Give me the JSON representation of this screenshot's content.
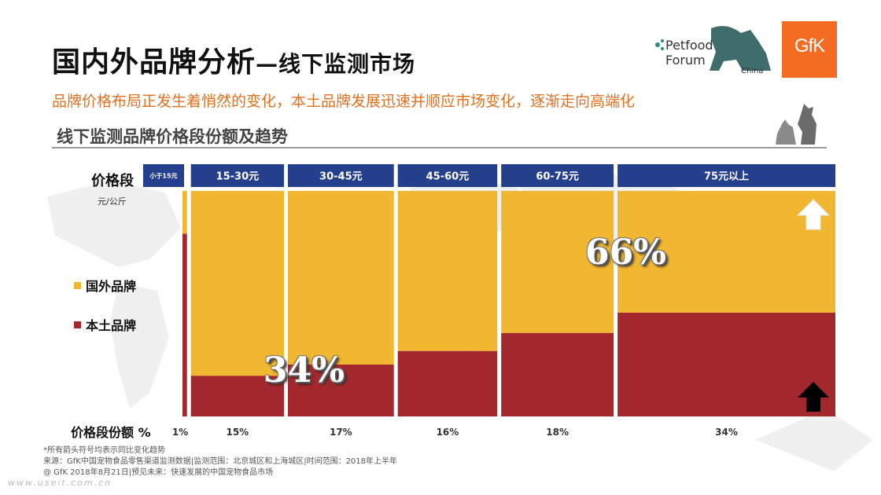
{
  "header": {
    "title": "国内外品牌分析",
    "title_suffix": "—线下监测市场",
    "subtitle": "品牌价格布局正发生着悄然的变化，本土品牌发展迅速并顺应市场变化，逐渐走向高端化",
    "section_title": "线下监测品牌价格段份额及趋势"
  },
  "logos": {
    "petfood_line1": "Petfood",
    "petfood_line2": "Forum",
    "petfood_line3": "China",
    "gfk": "GfK"
  },
  "colors": {
    "foreign": "#f2b731",
    "domestic": "#a3282d",
    "header_bar": "#243f8c",
    "title_accent": "#e0701f"
  },
  "axis": {
    "price_label": "价格段",
    "unit_label": "元/公斤",
    "share_label": "价格段份额 %"
  },
  "legend": {
    "foreign_label": "国外品牌",
    "domestic_label": "本土品牌"
  },
  "annotations": {
    "foreign_pct": "66%",
    "domestic_pct": "34%",
    "foreign_trend": "up-arrow-icon",
    "domestic_trend": "up-arrow-icon"
  },
  "chart_data": {
    "type": "marimekko",
    "categories": [
      "小于15元",
      "15-30元",
      "30-45元",
      "45-60元",
      "60-75元",
      "75元以上"
    ],
    "segment_share": [
      1,
      15,
      17,
      16,
      18,
      34
    ],
    "segment_share_labels": [
      "1%",
      "15%",
      "17%",
      "16%",
      "18%",
      "34%"
    ],
    "series": [
      {
        "name": "本土品牌",
        "values": [
          81,
          18,
          23,
          29,
          37,
          46
        ]
      },
      {
        "name": "国外品牌",
        "values": [
          19,
          82,
          77,
          71,
          63,
          54
        ]
      }
    ],
    "ylim": [
      0,
      100
    ]
  },
  "footnotes": {
    "line1": "*所有箭头符号均表示同比变化趋势",
    "line2": "来源：GfK中国宠物食品零售渠道监测数据|监测范围：北京城区和上海城区|时间范围：2018年上半年",
    "line3": "@ GfK 2018年8月21日|预见未来：快速发展的中国宠物食品市场",
    "watermark": "www.useit.com.cn"
  }
}
